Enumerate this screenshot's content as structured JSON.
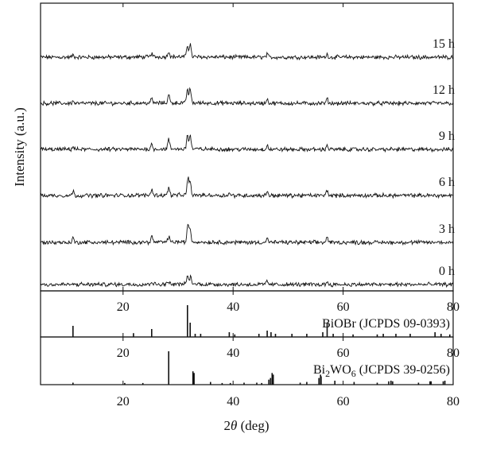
{
  "chart_data": {
    "type": "line",
    "xlabel_prefix": "2",
    "xlabel_symbol": "θ",
    "xlabel_suffix": " (deg)",
    "ylabel": "Intensity (a.u.)",
    "xlim": [
      5,
      80
    ],
    "xticks": [
      20,
      40,
      60,
      80
    ],
    "grid": false,
    "series": [
      {
        "name": "15 h",
        "peaks": [
          [
            10.9,
            0.15
          ],
          [
            25.2,
            0.25
          ],
          [
            28.3,
            0.4
          ],
          [
            31.7,
            0.8
          ],
          [
            32.2,
            0.95
          ],
          [
            46.2,
            0.2
          ],
          [
            57.1,
            0.2
          ]
        ]
      },
      {
        "name": "12 h",
        "peaks": [
          [
            10.9,
            0.15
          ],
          [
            25.2,
            0.3
          ],
          [
            28.3,
            0.6
          ],
          [
            31.7,
            1.0
          ],
          [
            32.2,
            1.0
          ],
          [
            46.2,
            0.3
          ],
          [
            57.1,
            0.3
          ]
        ]
      },
      {
        "name": "9 h",
        "peaks": [
          [
            10.9,
            0.2
          ],
          [
            25.2,
            0.35
          ],
          [
            28.3,
            0.7
          ],
          [
            31.7,
            1.0
          ],
          [
            32.2,
            1.0
          ],
          [
            46.2,
            0.3
          ],
          [
            57.1,
            0.3
          ]
        ]
      },
      {
        "name": "6 h",
        "peaks": [
          [
            10.9,
            0.3
          ],
          [
            25.2,
            0.45
          ],
          [
            28.3,
            0.55
          ],
          [
            31.8,
            1.25
          ],
          [
            32.2,
            0.9
          ],
          [
            39.3,
            0.15
          ],
          [
            46.2,
            0.3
          ],
          [
            57.1,
            0.4
          ]
        ]
      },
      {
        "name": "3 h",
        "peaks": [
          [
            10.9,
            0.3
          ],
          [
            25.2,
            0.4
          ],
          [
            28.3,
            0.4
          ],
          [
            31.8,
            1.3
          ],
          [
            32.2,
            0.9
          ],
          [
            46.2,
            0.3
          ],
          [
            57.1,
            0.4
          ]
        ]
      },
      {
        "name": "0 h",
        "peaks": [
          [
            25.2,
            0.2
          ],
          [
            28.3,
            0.2
          ],
          [
            31.7,
            0.6
          ],
          [
            32.3,
            0.55
          ],
          [
            46.2,
            0.25
          ],
          [
            57.1,
            0.2
          ]
        ]
      }
    ],
    "references": [
      {
        "label": "BiOBr (JCPDS 09-0393)",
        "lines": [
          [
            10.9,
            0.35
          ],
          [
            21.9,
            0.12
          ],
          [
            25.2,
            0.25
          ],
          [
            31.7,
            1.0
          ],
          [
            32.2,
            0.45
          ],
          [
            33.1,
            0.1
          ],
          [
            34.1,
            0.1
          ],
          [
            39.3,
            0.15
          ],
          [
            40.3,
            0.08
          ],
          [
            44.7,
            0.1
          ],
          [
            46.2,
            0.2
          ],
          [
            46.9,
            0.15
          ],
          [
            47.7,
            0.1
          ],
          [
            50.7,
            0.1
          ],
          [
            53.4,
            0.1
          ],
          [
            56.3,
            0.15
          ],
          [
            57.1,
            0.45
          ],
          [
            58.2,
            0.1
          ],
          [
            61.8,
            0.08
          ],
          [
            66.2,
            0.08
          ],
          [
            67.3,
            0.1
          ],
          [
            69.6,
            0.1
          ],
          [
            72.2,
            0.1
          ],
          [
            76.7,
            0.15
          ],
          [
            77.8,
            0.1
          ],
          [
            79.4,
            0.08
          ]
        ]
      },
      {
        "label_main": "Bi",
        "label_sub1": "2",
        "label_mid": "WO",
        "label_sub2": "6",
        "label_suffix": " (JCPDS 39-0256)",
        "lines": [
          [
            10.9,
            0.06
          ],
          [
            20.3,
            0.05
          ],
          [
            23.6,
            0.05
          ],
          [
            28.3,
            1.0
          ],
          [
            32.7,
            0.4
          ],
          [
            32.9,
            0.35
          ],
          [
            35.9,
            0.08
          ],
          [
            38.0,
            0.05
          ],
          [
            39.5,
            0.05
          ],
          [
            42.0,
            0.06
          ],
          [
            44.3,
            0.06
          ],
          [
            45.2,
            0.05
          ],
          [
            46.5,
            0.15
          ],
          [
            46.8,
            0.2
          ],
          [
            47.1,
            0.35
          ],
          [
            47.3,
            0.3
          ],
          [
            52.2,
            0.06
          ],
          [
            53.4,
            0.08
          ],
          [
            55.6,
            0.2
          ],
          [
            55.9,
            0.3
          ],
          [
            56.0,
            0.25
          ],
          [
            58.5,
            0.12
          ],
          [
            62.0,
            0.08
          ],
          [
            66.2,
            0.06
          ],
          [
            68.3,
            0.1
          ],
          [
            68.7,
            0.12
          ],
          [
            69.0,
            0.1
          ],
          [
            73.7,
            0.06
          ],
          [
            75.8,
            0.1
          ],
          [
            76.0,
            0.1
          ],
          [
            78.2,
            0.1
          ],
          [
            78.5,
            0.12
          ]
        ]
      }
    ]
  }
}
